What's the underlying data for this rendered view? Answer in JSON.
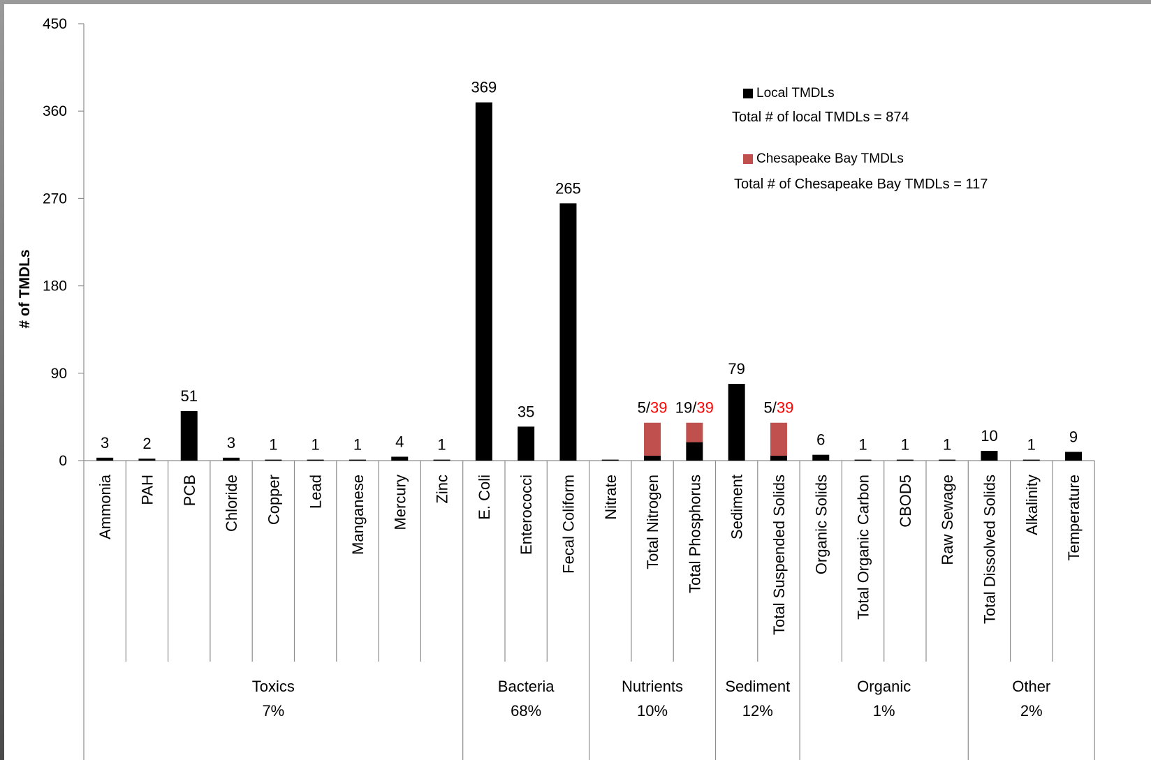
{
  "chart_data": {
    "type": "bar",
    "stacked": true,
    "ylabel": "# of TMDLs",
    "ylim": [
      0,
      450
    ],
    "yticks": [
      0,
      90,
      180,
      270,
      360,
      450
    ],
    "grid": false,
    "categories": [
      "Ammonia",
      "PAH",
      "PCB",
      "Chloride",
      "Copper",
      "Lead",
      "Manganese",
      "Mercury",
      "Zinc",
      "E. Coli",
      "Enterococci",
      "Fecal Coliform",
      "Nitrate",
      "Total Nitrogen",
      "Total Phosphorus",
      "Sediment",
      "Total Suspended  Solids",
      "Organic Solids",
      "Total Organic Carbon",
      "CBOD5",
      "Raw Sewage",
      "Total Dissolved Solids",
      "Alkalinity",
      "Temperature"
    ],
    "series": [
      {
        "name": "Local TMDLs",
        "color": "#000000",
        "values": [
          3,
          2,
          51,
          3,
          1,
          1,
          1,
          4,
          1,
          369,
          35,
          265,
          1,
          5,
          19,
          79,
          5,
          6,
          1,
          1,
          1,
          10,
          1,
          9
        ]
      },
      {
        "name": "Chesapeake Bay TMDLs",
        "color": "#c0504d",
        "values": [
          0,
          0,
          0,
          0,
          0,
          0,
          0,
          0,
          0,
          0,
          0,
          0,
          0,
          39,
          39,
          0,
          39,
          0,
          0,
          0,
          0,
          0,
          0,
          0
        ]
      }
    ],
    "data_labels": [
      {
        "local": "3"
      },
      {
        "local": "2"
      },
      {
        "local": "51"
      },
      {
        "local": "3"
      },
      {
        "local": "1"
      },
      {
        "local": "1"
      },
      {
        "local": "1"
      },
      {
        "local": "4"
      },
      {
        "local": "1"
      },
      {
        "local": "369"
      },
      {
        "local": "35"
      },
      {
        "local": "265"
      },
      {
        "local": ""
      },
      {
        "local": "5/",
        "bay": "39"
      },
      {
        "local": "19/",
        "bay": "39"
      },
      {
        "local": "79"
      },
      {
        "local": "5/",
        "bay": "39"
      },
      {
        "local": "6"
      },
      {
        "local": "1"
      },
      {
        "local": "1"
      },
      {
        "local": "1"
      },
      {
        "local": "10"
      },
      {
        "local": "1"
      },
      {
        "local": "9"
      }
    ],
    "groups": [
      {
        "name": "Toxics",
        "pct": "7%",
        "start": 0,
        "end": 8
      },
      {
        "name": "Bacteria",
        "pct": "68%",
        "start": 9,
        "end": 11
      },
      {
        "name": "Nutrients",
        "pct": "10%",
        "start": 12,
        "end": 14
      },
      {
        "name": "Sediment",
        "pct": "12%",
        "start": 15,
        "end": 16
      },
      {
        "name": "Organic",
        "pct": "1%",
        "start": 17,
        "end": 20
      },
      {
        "name": "Other",
        "pct": "2%",
        "start": 21,
        "end": 23
      }
    ],
    "legend": {
      "placement": "top-right",
      "entries": [
        {
          "label": "Local TMDLs",
          "color": "#000000",
          "total_text": "Total # of local TMDLs = 874"
        },
        {
          "label": "Chesapeake Bay TMDLs",
          "color": "#c0504d",
          "total_text": "Total # of Chesapeake Bay TMDLs = 117"
        }
      ]
    },
    "colors": {
      "local": "#000000",
      "bay": "#c0504d",
      "bay_label": "#ff0000",
      "axis": "#8c8c8c"
    }
  }
}
